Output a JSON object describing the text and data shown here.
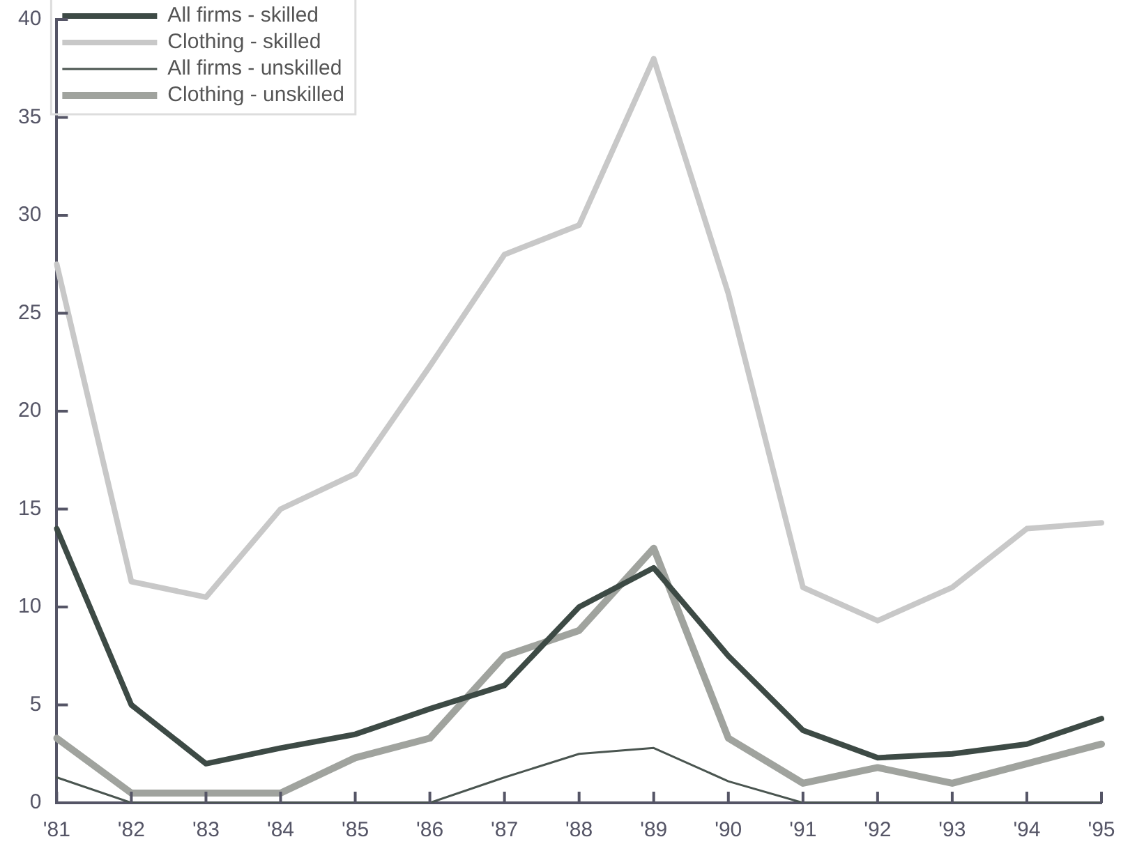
{
  "chart_data": {
    "type": "line",
    "categories": [
      "'81",
      "'82",
      "'83",
      "'84",
      "'85",
      "'86",
      "'87",
      "'88",
      "'89",
      "'90",
      "'91",
      "'92",
      "'93",
      "'94",
      "'95"
    ],
    "ylim": [
      0,
      40
    ],
    "yticks": [
      0,
      5,
      10,
      15,
      20,
      25,
      30,
      35,
      40
    ],
    "grid": false,
    "legend": "top left",
    "marker": "none",
    "line_style": "solid",
    "series": [
      {
        "name": "All firms - skilled",
        "color": "#3d4a45",
        "values": [
          14,
          5,
          2,
          2.8,
          3.5,
          4.8,
          6,
          10,
          12,
          7.5,
          3.7,
          2.3,
          2.5,
          3,
          4.3
        ]
      },
      {
        "name": "Clothing - skilled",
        "color": "#c8c8c8",
        "values": [
          27.5,
          11.3,
          10.5,
          15,
          16.8,
          22.3,
          28,
          29.5,
          38,
          26,
          11,
          9.3,
          11,
          14,
          14.3
        ]
      },
      {
        "name": "All firms - unskilled",
        "color": "#4a5550",
        "values": [
          1.3,
          0,
          0,
          0,
          0,
          0,
          1.3,
          2.5,
          2.8,
          1.1,
          0,
          0,
          0,
          0,
          0
        ]
      },
      {
        "name": "Clothing - unskilled",
        "color": "#a0a39e",
        "values": [
          3.3,
          0.5,
          0.5,
          0.5,
          2.3,
          3.3,
          7.5,
          8.8,
          13,
          3.3,
          1,
          1.8,
          1,
          2,
          3
        ]
      }
    ]
  }
}
